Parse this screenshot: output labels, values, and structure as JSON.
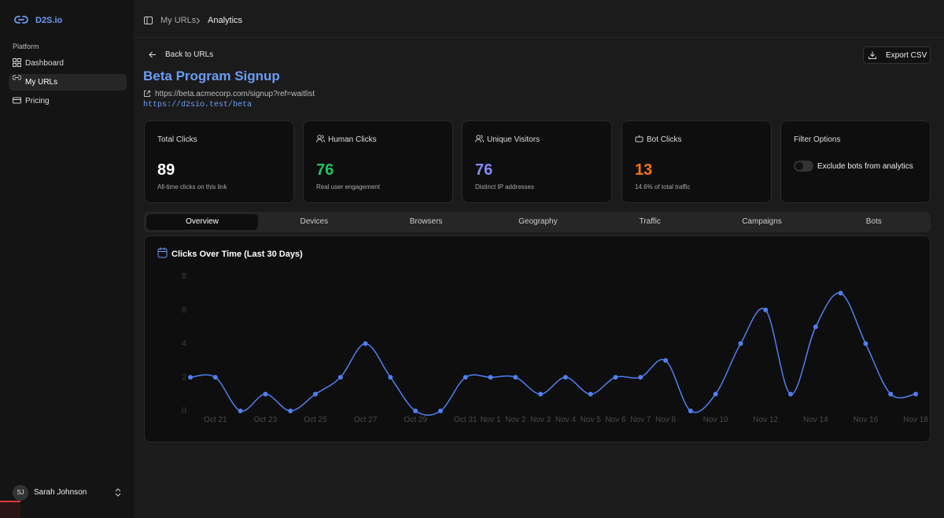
{
  "sidebar": {
    "brand": "D2S.io",
    "section": "Platform",
    "nav": [
      "Dashboard",
      "My URLs",
      "Pricing"
    ],
    "user": {
      "initials": "SJ",
      "name": "Sarah Johnson"
    }
  },
  "breadcrumb": [
    "My URLs",
    "Analytics"
  ],
  "header": {
    "back": "Back to URLs",
    "export": "Export CSV",
    "title": "Beta Program Signup",
    "target_url": "https://beta.acmecorp.com/signup?ref=waitlist",
    "short_url": "https://d2sio.test/beta"
  },
  "stats": [
    {
      "label": "Total Clicks",
      "value": 89,
      "note": "All-time clicks on this link"
    },
    {
      "label": "Human Clicks",
      "value": 76,
      "note": "Real user engagement"
    },
    {
      "label": "Unique Visitors",
      "value": 76,
      "note": "Distinct IP addresses"
    },
    {
      "label": "Bot Clicks",
      "value": 13,
      "note": "14.6% of total traffic"
    }
  ],
  "filter": {
    "label": "Filter Options",
    "toggle": "Exclude bots from analytics"
  },
  "tabs": [
    "Overview",
    "Devices",
    "Browsers",
    "Geography",
    "Traffic",
    "Campaigns",
    "Bots"
  ],
  "chart_data": {
    "type": "line",
    "title": "Clicks Over Time (Last 30 Days)",
    "categories": [
      null,
      "Oct 21",
      null,
      "Oct 23",
      null,
      "Oct 25",
      null,
      "Oct 27",
      null,
      "Oct 29",
      null,
      "Oct 31",
      "Nov 1",
      "Nov 2",
      "Nov 3",
      "Nov 4",
      "Nov 5",
      "Nov 6",
      "Nov 7",
      "Nov 8",
      null,
      "Nov 10",
      null,
      "Nov 12",
      null,
      "Nov 14",
      null,
      "Nov 16",
      null,
      "Nov 18"
    ],
    "values": [
      2,
      2,
      0,
      1,
      0,
      1,
      2,
      4,
      2,
      0,
      0,
      2,
      2,
      2,
      1,
      2,
      1,
      2,
      2,
      3,
      0,
      1,
      4,
      6,
      1,
      5,
      7,
      4,
      1,
      1
    ],
    "color": "#4f7ff0",
    "ylim": [
      0,
      8
    ],
    "yticks": [
      0,
      2,
      4,
      6,
      8
    ],
    "grid": false
  }
}
